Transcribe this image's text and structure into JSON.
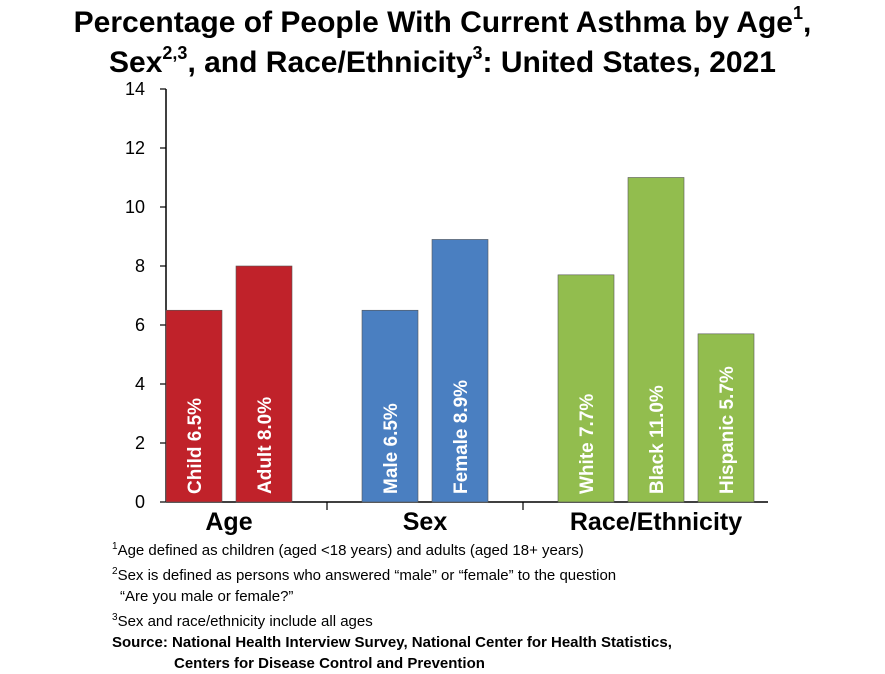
{
  "title": {
    "line1_text": "Percentage of People With Current Asthma by Age",
    "line1_sup": "1",
    "line1_end": ",",
    "line2_a": "Sex",
    "line2_sup_a": "2,3",
    "line2_b": ", and Race/Ethnicity",
    "line2_sup_b": "3",
    "line2_c": ": United States, 2021"
  },
  "colors": {
    "age": "#c0222a",
    "sex": "#4a7fc1",
    "race": "#92bd4e",
    "axis": "#000000"
  },
  "chart_data": {
    "type": "bar",
    "ylim": [
      0,
      14
    ],
    "yticks": [
      "0",
      "2",
      "4",
      "6",
      "8",
      "10",
      "12",
      "14"
    ],
    "grid": false,
    "groups": [
      {
        "name": "Age",
        "color_key": "age",
        "bars": [
          {
            "label": "Child  6.5%",
            "value": 6.5
          },
          {
            "label": "Adult  8.0%",
            "value": 8.0
          }
        ]
      },
      {
        "name": "Sex",
        "color_key": "sex",
        "bars": [
          {
            "label": "Male  6.5%",
            "value": 6.5
          },
          {
            "label": "Female  8.9%",
            "value": 8.9
          }
        ]
      },
      {
        "name": "Race/Ethnicity",
        "color_key": "race",
        "bars": [
          {
            "label": "White  7.7%",
            "value": 7.7
          },
          {
            "label": "Black  11.0%",
            "value": 11.0
          },
          {
            "label": "Hispanic  5.7%",
            "value": 5.7
          }
        ]
      }
    ]
  },
  "footnotes": {
    "f1_sup": "1",
    "f1": "Age defined as children (aged <18 years) and adults (aged 18+ years)",
    "f2_sup": "2",
    "f2": "Sex is defined as persons who answered “male” or “female” to the question",
    "f2b": "“Are you male or female?”",
    "f3_sup": "3",
    "f3": "Sex and race/ethnicity include all ages",
    "source1": "Source: National Health Interview Survey, National Center for Health Statistics,",
    "source2": "Centers for Disease Control and Prevention"
  }
}
